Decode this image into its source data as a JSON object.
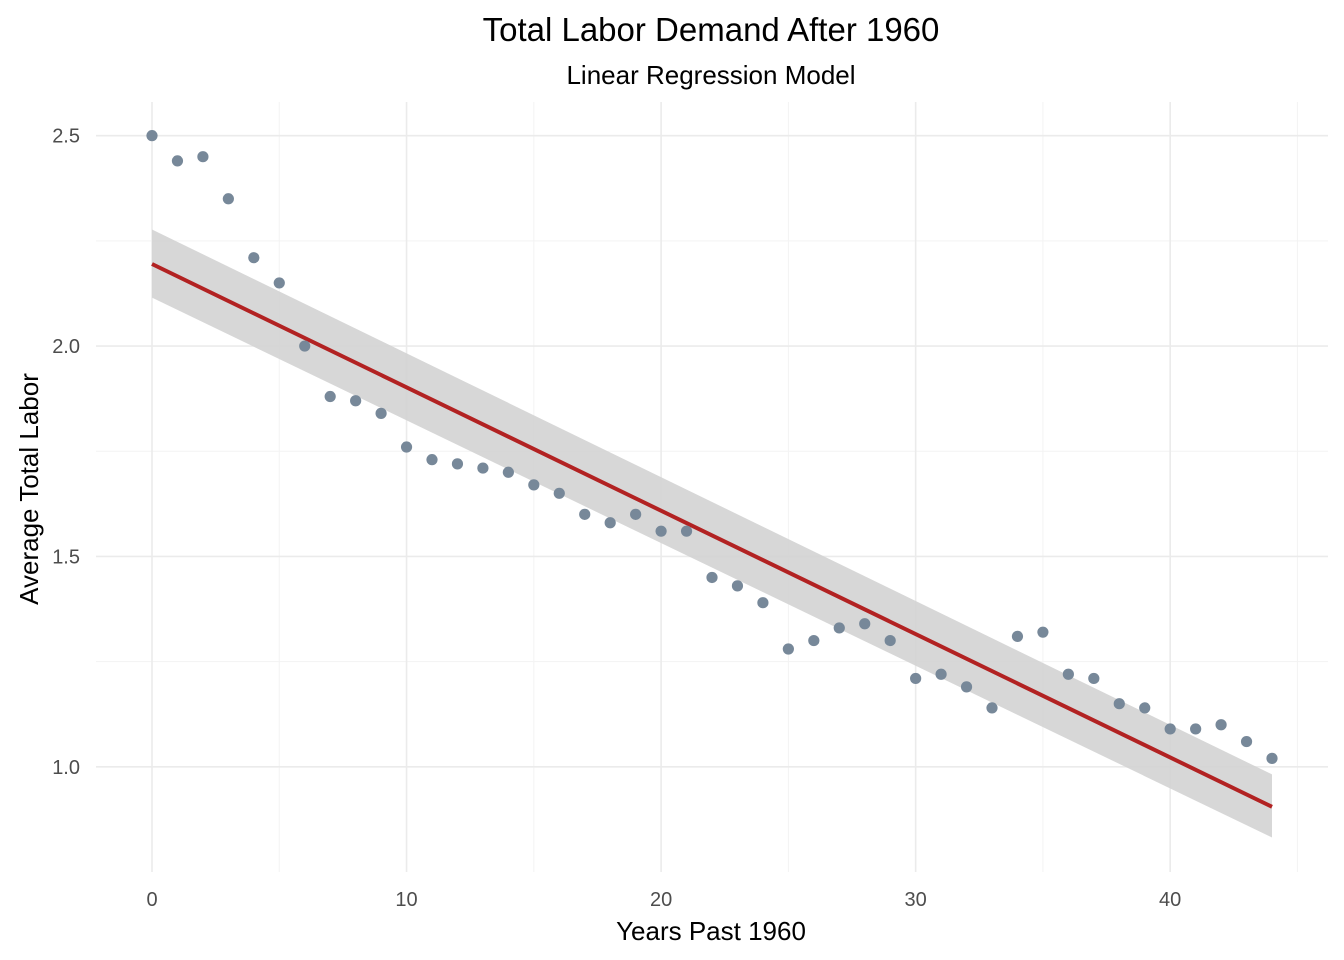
{
  "chart_data": {
    "type": "scatter",
    "title": "Total Labor Demand After 1960",
    "subtitle": "Linear Regression Model",
    "xlabel": "Years Past 1960",
    "ylabel": "Average Total Labor",
    "xlim": [
      -2.2,
      46.2
    ],
    "ylim": [
      0.75,
      2.58
    ],
    "x_ticks": [
      0,
      10,
      20,
      30,
      40
    ],
    "y_ticks": [
      1.0,
      1.5,
      2.0,
      2.5
    ],
    "x_tick_labels": [
      "0",
      "10",
      "20",
      "30",
      "40"
    ],
    "y_tick_labels": [
      "1.0",
      "1.5",
      "2.0",
      "2.5"
    ],
    "grid": true,
    "points": {
      "x": [
        0,
        1,
        2,
        3,
        4,
        5,
        6,
        7,
        8,
        9,
        10,
        11,
        12,
        13,
        14,
        15,
        16,
        17,
        18,
        19,
        20,
        21,
        22,
        23,
        24,
        25,
        26,
        27,
        28,
        29,
        30,
        31,
        32,
        33,
        34,
        35,
        36,
        37,
        38,
        39,
        40,
        41,
        42,
        43,
        44
      ],
      "y": [
        2.5,
        2.44,
        2.45,
        2.35,
        2.21,
        2.15,
        2.0,
        1.88,
        1.87,
        1.84,
        1.76,
        1.73,
        1.72,
        1.71,
        1.7,
        1.67,
        1.65,
        1.6,
        1.58,
        1.6,
        1.56,
        1.56,
        1.45,
        1.43,
        1.39,
        1.28,
        1.3,
        1.33,
        1.34,
        1.3,
        1.21,
        1.22,
        1.19,
        1.14,
        1.31,
        1.32,
        1.22,
        1.21,
        1.15,
        1.14,
        1.09,
        1.09,
        1.1,
        1.06,
        1.02
      ]
    },
    "regression": {
      "x_range": [
        0,
        44
      ],
      "fit": [
        2.195,
        0.905
      ],
      "ci_lower": [
        2.115,
        0.832
      ],
      "ci_upper": [
        2.277,
        0.982
      ]
    },
    "colors": {
      "points": "#778899",
      "line": "#b22222",
      "ribbon": "#d3d3d3",
      "background": "#ffffff"
    }
  }
}
